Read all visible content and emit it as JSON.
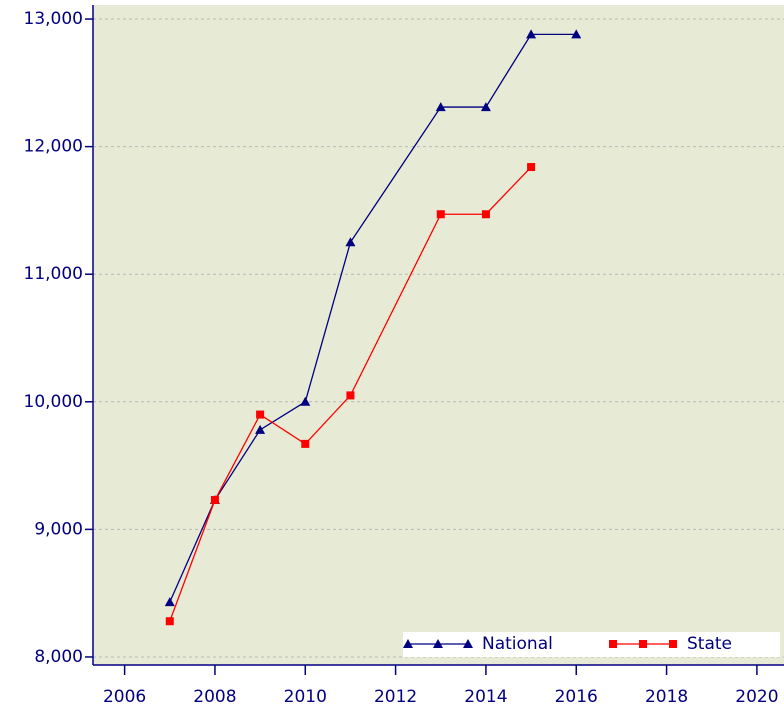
{
  "chart_data": {
    "type": "line",
    "series": [
      {
        "name": "National",
        "color": "#000080",
        "marker": "triangle",
        "x": [
          2007,
          2008,
          2009,
          2010,
          2011,
          2013,
          2014,
          2015,
          2016
        ],
        "values": [
          8430,
          9230,
          9780,
          10000,
          11250,
          12310,
          12310,
          12880,
          12880
        ]
      },
      {
        "name": "State",
        "color": "#ff0000",
        "marker": "square",
        "x": [
          2007,
          2008,
          2009,
          2010,
          2011,
          2013,
          2014,
          2015
        ],
        "values": [
          8280,
          9230,
          9900,
          9670,
          10050,
          11470,
          11470,
          11840
        ]
      }
    ],
    "xlim": [
      2005.3,
      2020.6
    ],
    "xticks": [
      2006,
      2008,
      2010,
      2012,
      2014,
      2016,
      2018,
      2020
    ],
    "ylim": [
      7937,
      13110
    ],
    "yticks": [
      {
        "value": 8000,
        "label": "8,000"
      },
      {
        "value": 9000,
        "label": "9,000"
      },
      {
        "value": 10000,
        "label": "10,000"
      },
      {
        "value": 11000,
        "label": "11,000"
      },
      {
        "value": 12000,
        "label": "12,000"
      },
      {
        "value": 13000,
        "label": "13,000"
      }
    ],
    "grid": true,
    "legend": "lower right"
  }
}
